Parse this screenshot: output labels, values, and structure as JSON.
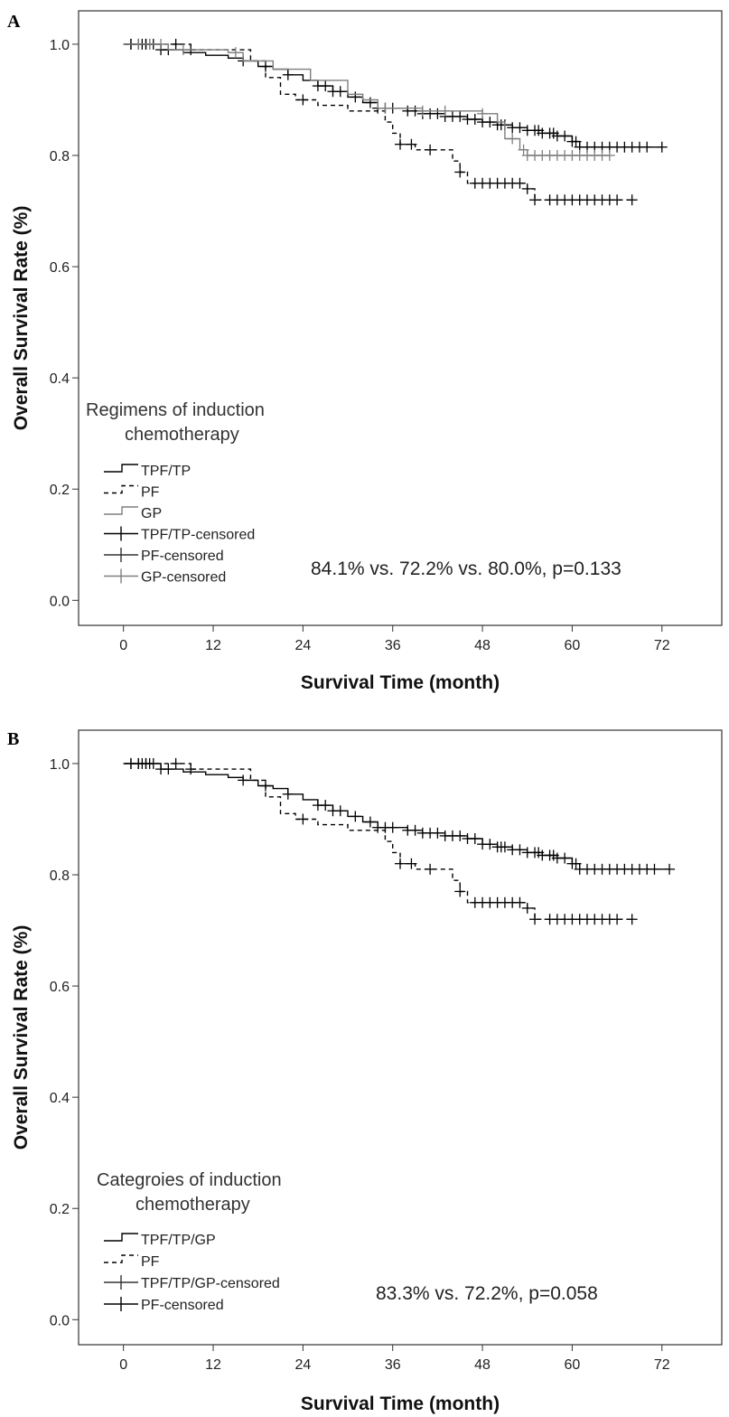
{
  "figure": {
    "panels": [
      "A",
      "B"
    ]
  },
  "colors": {
    "black": "#000000",
    "gray": "#7f7f7f",
    "frame": "#333333"
  },
  "chart_data": [
    {
      "panel": "A",
      "type": "line",
      "subtype": "kaplan-meier",
      "xlabel": "Survival Time (month)",
      "ylabel": "Overall Survival Rate (%)",
      "xlim": [
        -6,
        80
      ],
      "ylim": [
        -0.045,
        1.06
      ],
      "xticks": [
        0,
        12,
        24,
        36,
        48,
        60,
        72
      ],
      "yticks": [
        0.0,
        0.2,
        0.4,
        0.6,
        0.8,
        1.0
      ],
      "ytick_labels": [
        "0.0",
        "0.2",
        "0.4",
        "0.6",
        "0.8",
        "1.0"
      ],
      "grid": false,
      "legend_title": [
        "Regimens of induction",
        "chemotherapy"
      ],
      "legend_placement": "lower-left",
      "legend": [
        {
          "label": "TPF/TP",
          "symbol": "step",
          "style": "solid",
          "color": "#000000"
        },
        {
          "label": "PF",
          "symbol": "step",
          "style": "dashed",
          "color": "#000000"
        },
        {
          "label": "GP",
          "symbol": "step",
          "style": "solid",
          "color": "#7f7f7f"
        },
        {
          "label": "TPF/TP-censored",
          "symbol": "cross",
          "color": "#000000"
        },
        {
          "label": "PF-censored",
          "symbol": "cross",
          "color": "#333333"
        },
        {
          "label": "GP-censored",
          "symbol": "cross",
          "color": "#7f7f7f"
        }
      ],
      "annotation": "84.1% vs. 72.2% vs. 80.0%, p=0.133",
      "series": [
        {
          "name": "TPF/TP",
          "style": "solid",
          "color": "#000000",
          "steps": [
            [
              0,
              1.0
            ],
            [
              5,
              0.99
            ],
            [
              8,
              0.985
            ],
            [
              11,
              0.98
            ],
            [
              14,
              0.975
            ],
            [
              16,
              0.97
            ],
            [
              18,
              0.96
            ],
            [
              20,
              0.955
            ],
            [
              22,
              0.945
            ],
            [
              24,
              0.935
            ],
            [
              26,
              0.925
            ],
            [
              28,
              0.915
            ],
            [
              30,
              0.905
            ],
            [
              32,
              0.895
            ],
            [
              34,
              0.885
            ],
            [
              38,
              0.88
            ],
            [
              40,
              0.875
            ],
            [
              43,
              0.87
            ],
            [
              46,
              0.865
            ],
            [
              48,
              0.86
            ],
            [
              50,
              0.855
            ],
            [
              52,
              0.85
            ],
            [
              54,
              0.845
            ],
            [
              56,
              0.84
            ],
            [
              58,
              0.835
            ],
            [
              60,
              0.825
            ],
            [
              61,
              0.815
            ],
            [
              72,
              0.815
            ]
          ],
          "censored": [
            1,
            2,
            2.5,
            3,
            3.5,
            5,
            6,
            16,
            19,
            22,
            26,
            27,
            28,
            29,
            31,
            33,
            34,
            35,
            36,
            38,
            39,
            40,
            41,
            42,
            43,
            44,
            45,
            46,
            47,
            48,
            49,
            50,
            50.5,
            51,
            52,
            53,
            54,
            55,
            55.5,
            56,
            57,
            57.5,
            58,
            59,
            60,
            60.5,
            61,
            62,
            63,
            64,
            65,
            66,
            67,
            68,
            69,
            70,
            72
          ]
        },
        {
          "name": "PF",
          "style": "dashed",
          "color": "#000000",
          "steps": [
            [
              0,
              1.0
            ],
            [
              9,
              0.99
            ],
            [
              17,
              0.97
            ],
            [
              19,
              0.94
            ],
            [
              21,
              0.91
            ],
            [
              23,
              0.9
            ],
            [
              26,
              0.89
            ],
            [
              30,
              0.88
            ],
            [
              35,
              0.86
            ],
            [
              36,
              0.84
            ],
            [
              37,
              0.82
            ],
            [
              39,
              0.81
            ],
            [
              44,
              0.79
            ],
            [
              45,
              0.77
            ],
            [
              46,
              0.75
            ],
            [
              54,
              0.74
            ],
            [
              55,
              0.72
            ],
            [
              68,
              0.72
            ]
          ],
          "censored": [
            1,
            2,
            3,
            4,
            7,
            9,
            24,
            37,
            38.5,
            41,
            45,
            47,
            48,
            49,
            50,
            51,
            52,
            53,
            54,
            55,
            57,
            58,
            59,
            60,
            61,
            62,
            63,
            64,
            65,
            66,
            68
          ]
        },
        {
          "name": "GP",
          "style": "solid",
          "color": "#7f7f7f",
          "steps": [
            [
              0,
              1.0
            ],
            [
              6,
              0.99
            ],
            [
              14,
              0.985
            ],
            [
              16,
              0.97
            ],
            [
              20,
              0.955
            ],
            [
              25,
              0.935
            ],
            [
              30,
              0.91
            ],
            [
              32,
              0.9
            ],
            [
              34,
              0.885
            ],
            [
              40,
              0.88
            ],
            [
              48,
              0.875
            ],
            [
              50,
              0.86
            ],
            [
              51,
              0.83
            ],
            [
              53,
              0.81
            ],
            [
              54,
              0.8
            ],
            [
              65,
              0.8
            ]
          ],
          "censored": [
            2,
            3.5,
            5,
            8,
            15,
            35,
            40,
            43,
            48,
            52,
            53.5,
            54,
            55,
            56,
            57,
            58,
            59,
            60,
            61,
            62,
            63,
            64,
            65
          ]
        }
      ]
    },
    {
      "panel": "B",
      "type": "line",
      "subtype": "kaplan-meier",
      "xlabel": "Survival Time (month)",
      "ylabel": "Overall Survival Rate (%)",
      "xlim": [
        -6,
        80
      ],
      "ylim": [
        -0.045,
        1.06
      ],
      "xticks": [
        0,
        12,
        24,
        36,
        48,
        60,
        72
      ],
      "yticks": [
        0.0,
        0.2,
        0.4,
        0.6,
        0.8,
        1.0
      ],
      "ytick_labels": [
        "0.0",
        "0.2",
        "0.4",
        "0.6",
        "0.8",
        "1.0"
      ],
      "grid": false,
      "legend_title": [
        "Categroies of induction",
        "chemotherapy"
      ],
      "legend_placement": "lower-left",
      "legend": [
        {
          "label": "TPF/TP/GP",
          "symbol": "step",
          "style": "solid",
          "color": "#000000"
        },
        {
          "label": "PF",
          "symbol": "step",
          "style": "dashed",
          "color": "#000000"
        },
        {
          "label": "TPF/TP/GP-censored",
          "symbol": "cross",
          "color": "#333333"
        },
        {
          "label": "PF-censored",
          "symbol": "cross",
          "color": "#000000"
        }
      ],
      "annotation": "83.3% vs. 72.2%, p=0.058",
      "series": [
        {
          "name": "TPF/TP/GP",
          "style": "solid",
          "color": "#000000",
          "steps": [
            [
              0,
              1.0
            ],
            [
              5,
              0.99
            ],
            [
              8,
              0.985
            ],
            [
              11,
              0.98
            ],
            [
              14,
              0.975
            ],
            [
              16,
              0.97
            ],
            [
              18,
              0.96
            ],
            [
              20,
              0.955
            ],
            [
              22,
              0.945
            ],
            [
              24,
              0.935
            ],
            [
              26,
              0.925
            ],
            [
              28,
              0.915
            ],
            [
              30,
              0.905
            ],
            [
              32,
              0.895
            ],
            [
              34,
              0.885
            ],
            [
              38,
              0.88
            ],
            [
              40,
              0.875
            ],
            [
              43,
              0.87
            ],
            [
              46,
              0.865
            ],
            [
              48,
              0.855
            ],
            [
              50,
              0.85
            ],
            [
              52,
              0.845
            ],
            [
              54,
              0.84
            ],
            [
              56,
              0.835
            ],
            [
              58,
              0.83
            ],
            [
              60,
              0.82
            ],
            [
              61,
              0.81
            ],
            [
              73,
              0.81
            ]
          ],
          "censored": [
            1,
            2,
            2.5,
            3,
            3.5,
            5,
            6,
            16,
            19,
            22,
            26,
            27,
            28,
            29,
            31,
            33,
            34,
            35,
            36,
            38,
            39,
            40,
            41,
            42,
            43,
            44,
            45,
            46,
            47,
            48,
            49,
            50,
            50.5,
            51,
            52,
            53,
            54,
            55,
            55.5,
            56,
            57,
            57.5,
            58,
            59,
            60,
            60.5,
            61,
            62,
            63,
            64,
            65,
            66,
            67,
            68,
            69,
            70,
            71,
            73
          ]
        },
        {
          "name": "PF",
          "style": "dashed",
          "color": "#000000",
          "steps": [
            [
              0,
              1.0
            ],
            [
              9,
              0.99
            ],
            [
              17,
              0.97
            ],
            [
              19,
              0.94
            ],
            [
              21,
              0.91
            ],
            [
              23,
              0.9
            ],
            [
              26,
              0.89
            ],
            [
              30,
              0.88
            ],
            [
              35,
              0.86
            ],
            [
              36,
              0.84
            ],
            [
              37,
              0.82
            ],
            [
              39,
              0.81
            ],
            [
              44,
              0.79
            ],
            [
              45,
              0.77
            ],
            [
              46,
              0.75
            ],
            [
              54,
              0.74
            ],
            [
              55,
              0.72
            ],
            [
              68,
              0.72
            ]
          ],
          "censored": [
            1,
            2,
            3,
            4,
            7,
            9,
            24,
            37,
            38.5,
            41,
            45,
            47,
            48,
            49,
            50,
            51,
            52,
            53,
            54,
            55,
            57,
            58,
            59,
            60,
            61,
            62,
            63,
            64,
            65,
            66,
            68
          ]
        }
      ]
    }
  ]
}
